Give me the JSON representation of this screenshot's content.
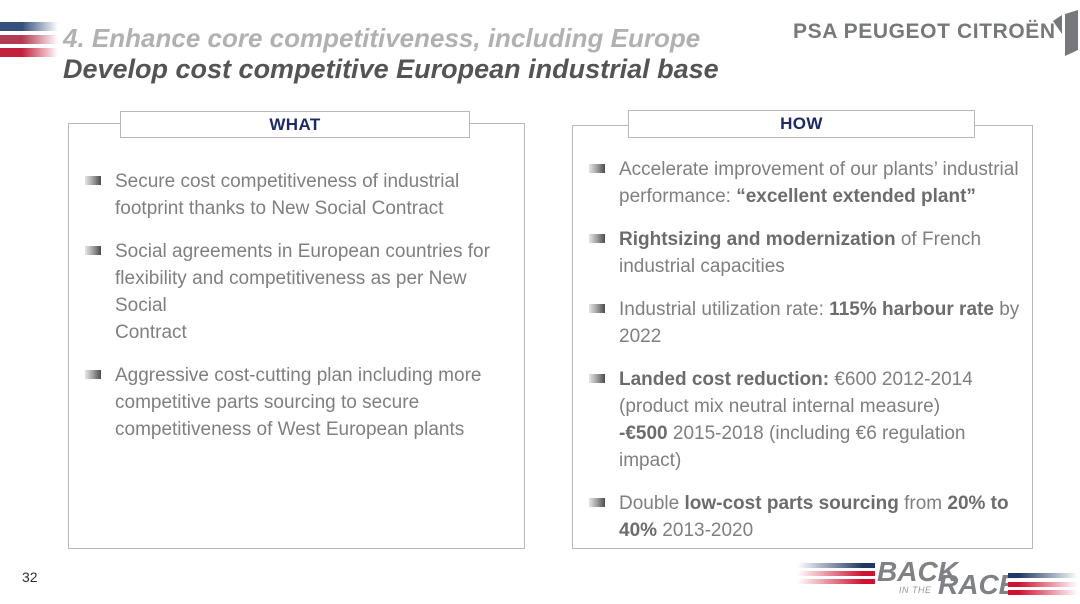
{
  "header": {
    "title": "4. Enhance core competitiveness, including Europe",
    "subtitle": "Develop cost competitive European industrial base",
    "logo_text": "PSA PEUGEOT CITROËN"
  },
  "columns": [
    {
      "header": "WHAT",
      "bullets": [
        [
          {
            "t": "Secure cost competitiveness of industrial\nfootprint thanks to New Social Contract"
          }
        ],
        [
          {
            "t": "Social agreements in European countries for\nflexibility and competitiveness as per New Social\nContract"
          }
        ],
        [
          {
            "t": "Aggressive cost-cutting plan including more\ncompetitive parts sourcing to secure\ncompetitiveness of West European plants"
          }
        ]
      ]
    },
    {
      "header": "HOW",
      "bullets": [
        [
          {
            "t": "Accelerate improvement of our plants’ industrial\nperformance: "
          },
          {
            "t": "“excellent extended plant”",
            "b": true
          }
        ],
        [
          {
            "t": "Rightsizing and modernization",
            "b": true
          },
          {
            "t": " of French\nindustrial capacities"
          }
        ],
        [
          {
            "t": "Industrial utilization rate: "
          },
          {
            "t": "115% harbour rate",
            "b": true
          },
          {
            "t": " by\n2022"
          }
        ],
        [
          {
            "t": "Landed cost reduction:",
            "b": true
          },
          {
            "t": " €600 2012-2014\n(product mix neutral internal measure)\n"
          },
          {
            "t": "-€500",
            "b": true
          },
          {
            "t": " 2015-2018 (including €6 regulation\nimpact)"
          }
        ],
        [
          {
            "t": "Double "
          },
          {
            "t": "low-cost parts sourcing",
            "b": true
          },
          {
            "t": " from "
          },
          {
            "t": "20% to\n40%",
            "b": true
          },
          {
            "t": " 2013-2020"
          }
        ]
      ]
    }
  ],
  "footer": {
    "page_number": "32",
    "race_logo": {
      "back": "BACK",
      "in_the": "IN THE",
      "race": "RACE"
    }
  },
  "colors": {
    "heading_navy": "#1c2a66",
    "body_gray": "#7f7f7f",
    "bold_gray": "#6c6c6c",
    "brand_gray": "#77787b",
    "flag_navy": "#34507b",
    "flag_crimson": "#b23a52",
    "flag_red": "#c2203c",
    "race_navy": "#1f3864",
    "race_red": "#cf1132"
  }
}
